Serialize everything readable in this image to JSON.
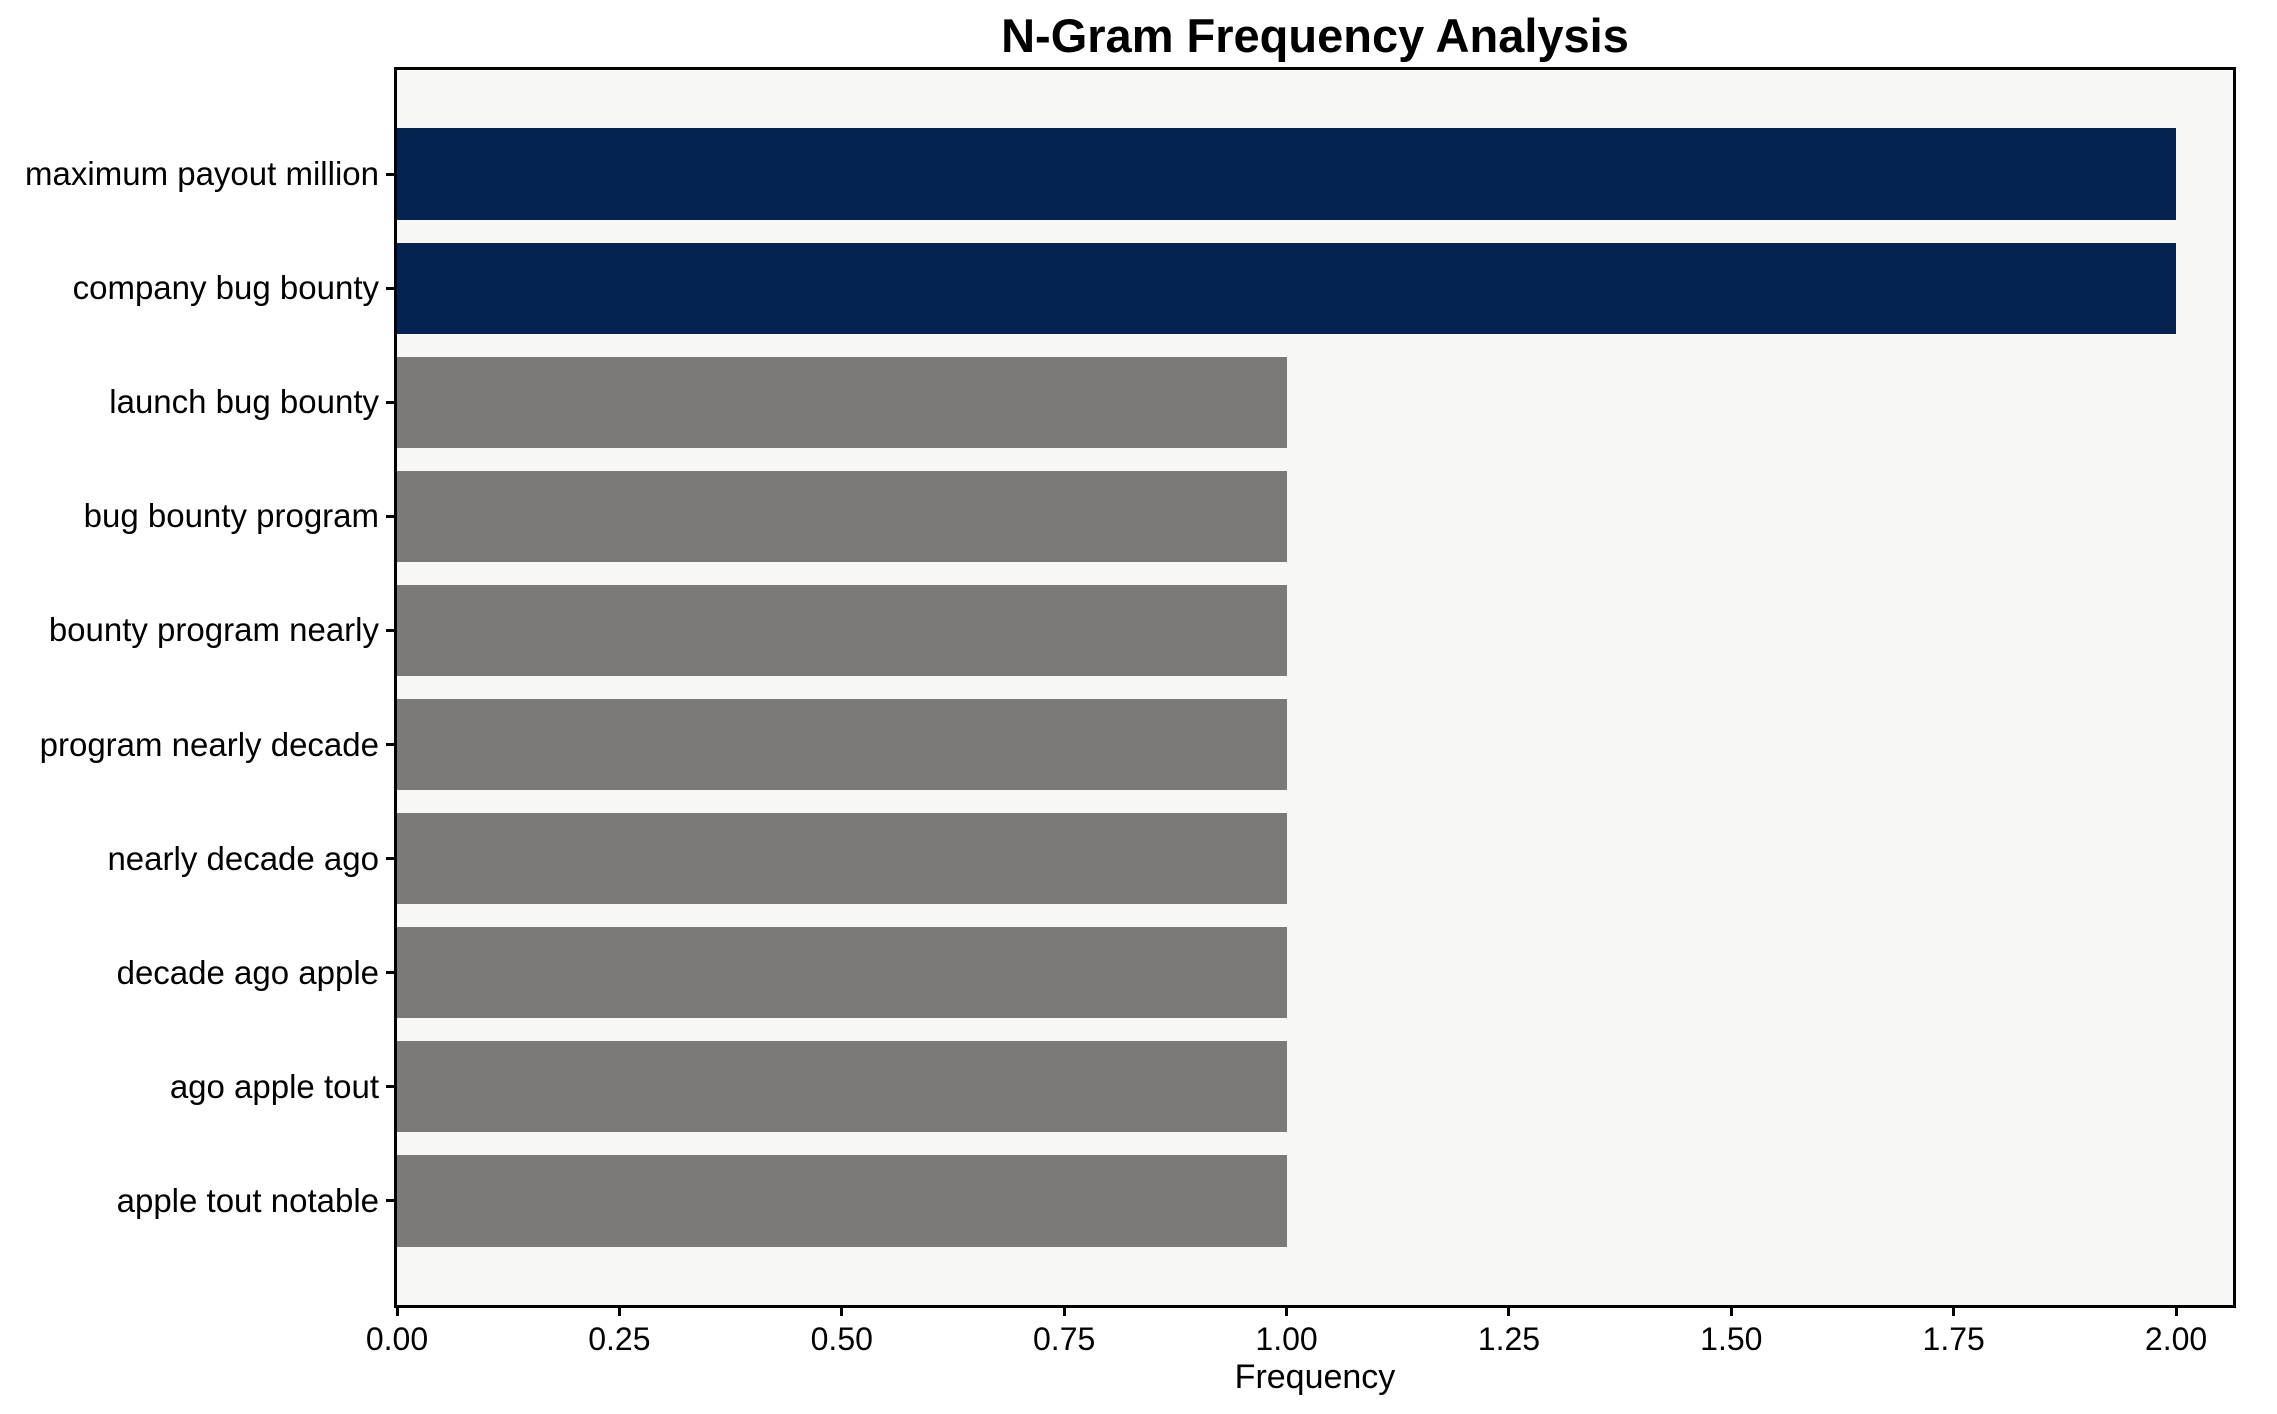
{
  "figure": {
    "background_color": "#ffffff",
    "plot_background_color": "#f7f7f5",
    "frame_color": "#000000"
  },
  "chart_data": {
    "type": "bar",
    "orientation": "horizontal",
    "title": "N-Gram Frequency Analysis",
    "xlabel": "Frequency",
    "ylabel": "",
    "categories": [
      "maximum payout million",
      "company bug bounty",
      "launch bug bounty",
      "bug bounty program",
      "bounty program nearly",
      "program nearly decade",
      "nearly decade ago",
      "decade ago apple",
      "ago apple tout",
      "apple tout notable"
    ],
    "values": [
      2,
      2,
      1,
      1,
      1,
      1,
      1,
      1,
      1,
      1
    ],
    "bar_colors": [
      "#052350",
      "#052350",
      "#7b7a77",
      "#7b7a77",
      "#7b7a77",
      "#7b7a77",
      "#7b7a77",
      "#7b7a77",
      "#7b7a77",
      "#7b7a77"
    ],
    "highlight_color": "#052350",
    "default_color": "#7b7a77",
    "x_tick_labels": [
      "0.00",
      "0.25",
      "0.50",
      "0.75",
      "1.00",
      "1.25",
      "1.50",
      "1.75",
      "2.00"
    ],
    "x_tick_values": [
      0,
      0.25,
      0.5,
      0.75,
      1.0,
      1.25,
      1.5,
      1.75,
      2.0
    ],
    "xlim": [
      0,
      2.064
    ],
    "grid": false,
    "legend": false,
    "bar_height_fraction": 0.8
  }
}
